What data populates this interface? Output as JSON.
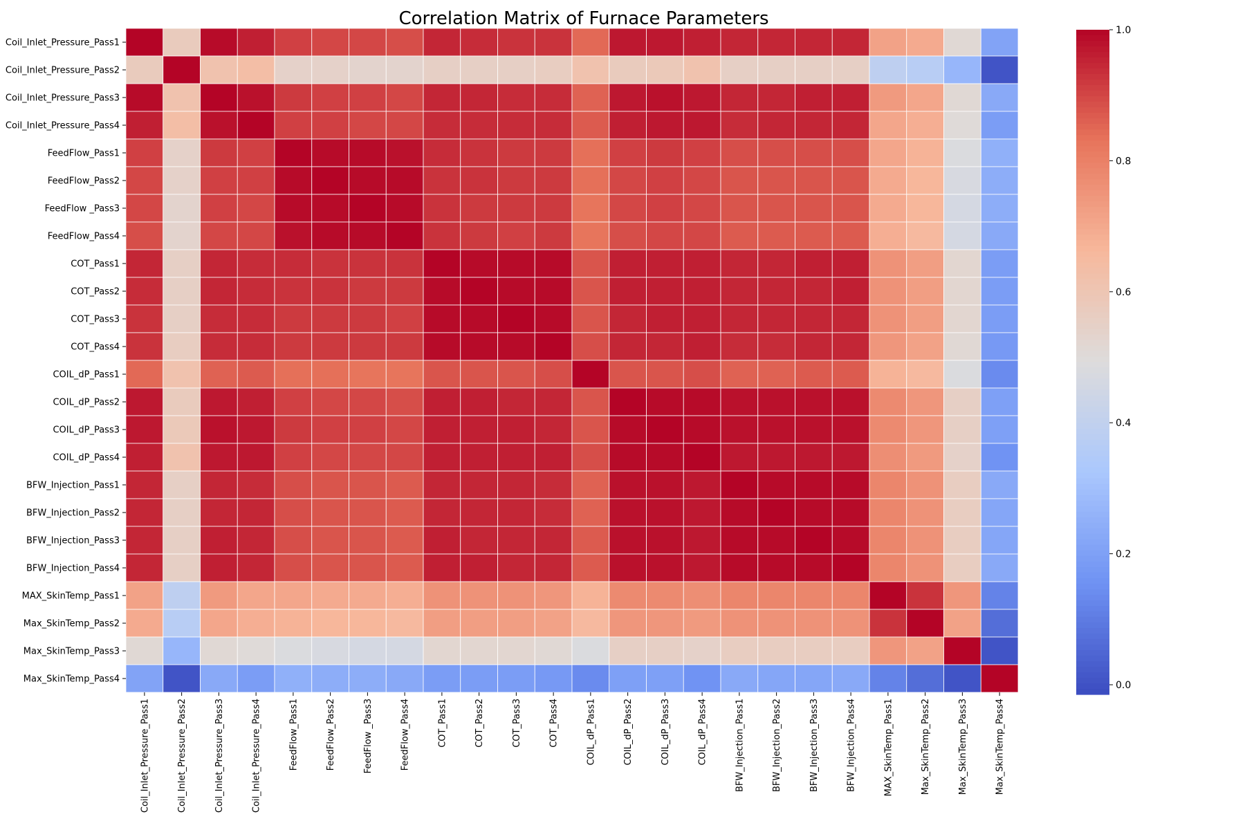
{
  "chart_data": {
    "type": "heatmap",
    "title": "Correlation Matrix of Furnace Parameters",
    "colormap": "coolwarm",
    "colormap_stops": [
      "#3b4cc0",
      "#6f92f3",
      "#aac7fd",
      "#dddcdc",
      "#f7b89c",
      "#e7745b",
      "#b40426"
    ],
    "value_range": [
      0.0,
      1.0
    ],
    "colorbar_ticks": [
      "0.0",
      "0.2",
      "0.4",
      "0.6",
      "0.8",
      "1.0"
    ],
    "gridlines": "white",
    "labels": [
      "Coil_Inlet_Pressure_Pass1",
      "Coil_Inlet_Pressure_Pass2",
      "Coil_Inlet_Pressure_Pass3",
      "Coil_Inlet_Pressure_Pass4",
      "FeedFlow_Pass1",
      "FeedFlow_Pass2",
      "FeedFlow _Pass3",
      "FeedFlow_Pass4",
      "COT_Pass1",
      "COT_Pass2",
      "COT_Pass3",
      "COT_Pass4",
      "COIL_dP_Pass1",
      "COIL_dP_Pass2",
      "COIL_dP_Pass3",
      "COIL_dP_Pass4",
      "BFW_Injection_Pass1",
      "BFW_Injection_Pass2",
      "BFW_Injection_Pass3",
      "BFW_Injection_Pass4",
      "MAX_SkinTemp_Pass1",
      "Max_SkinTemp_Pass2",
      "Max_SkinTemp_Pass3",
      "Max_SkinTemp_Pass4"
    ],
    "matrix": [
      [
        1.0,
        0.58,
        0.99,
        0.96,
        0.91,
        0.9,
        0.9,
        0.89,
        0.95,
        0.94,
        0.93,
        0.93,
        0.85,
        0.97,
        0.97,
        0.96,
        0.95,
        0.95,
        0.95,
        0.95,
        0.72,
        0.7,
        0.52,
        0.22
      ],
      [
        0.58,
        1.0,
        0.62,
        0.64,
        0.55,
        0.55,
        0.54,
        0.54,
        0.56,
        0.56,
        0.56,
        0.57,
        0.62,
        0.58,
        0.59,
        0.62,
        0.56,
        0.56,
        0.56,
        0.56,
        0.4,
        0.38,
        0.28,
        0.02
      ],
      [
        0.99,
        0.62,
        1.0,
        0.98,
        0.92,
        0.91,
        0.91,
        0.9,
        0.95,
        0.95,
        0.94,
        0.94,
        0.86,
        0.97,
        0.98,
        0.97,
        0.95,
        0.95,
        0.96,
        0.96,
        0.74,
        0.71,
        0.52,
        0.24
      ],
      [
        0.96,
        0.64,
        0.98,
        1.0,
        0.91,
        0.91,
        0.9,
        0.9,
        0.94,
        0.94,
        0.94,
        0.94,
        0.87,
        0.96,
        0.97,
        0.97,
        0.94,
        0.95,
        0.95,
        0.95,
        0.71,
        0.69,
        0.51,
        0.2
      ],
      [
        0.91,
        0.55,
        0.92,
        0.91,
        1.0,
        0.99,
        0.99,
        0.98,
        0.94,
        0.93,
        0.92,
        0.92,
        0.84,
        0.91,
        0.92,
        0.91,
        0.89,
        0.89,
        0.89,
        0.89,
        0.71,
        0.68,
        0.49,
        0.26
      ],
      [
        0.9,
        0.55,
        0.91,
        0.91,
        0.99,
        1.0,
        0.99,
        0.99,
        0.93,
        0.93,
        0.92,
        0.92,
        0.84,
        0.9,
        0.91,
        0.9,
        0.88,
        0.88,
        0.88,
        0.88,
        0.7,
        0.67,
        0.48,
        0.25
      ],
      [
        0.9,
        0.54,
        0.91,
        0.9,
        0.99,
        0.99,
        1.0,
        0.99,
        0.93,
        0.92,
        0.92,
        0.92,
        0.83,
        0.9,
        0.91,
        0.9,
        0.88,
        0.88,
        0.88,
        0.88,
        0.7,
        0.67,
        0.47,
        0.25
      ],
      [
        0.89,
        0.54,
        0.9,
        0.9,
        0.98,
        0.99,
        0.99,
        1.0,
        0.93,
        0.92,
        0.91,
        0.92,
        0.83,
        0.89,
        0.9,
        0.9,
        0.87,
        0.87,
        0.87,
        0.87,
        0.69,
        0.66,
        0.47,
        0.24
      ],
      [
        0.95,
        0.56,
        0.95,
        0.94,
        0.94,
        0.93,
        0.93,
        0.93,
        1.0,
        0.99,
        0.99,
        0.99,
        0.88,
        0.96,
        0.96,
        0.96,
        0.95,
        0.95,
        0.96,
        0.96,
        0.76,
        0.73,
        0.53,
        0.2
      ],
      [
        0.94,
        0.56,
        0.95,
        0.94,
        0.93,
        0.93,
        0.92,
        0.92,
        0.99,
        1.0,
        0.99,
        0.99,
        0.88,
        0.96,
        0.96,
        0.96,
        0.95,
        0.95,
        0.95,
        0.96,
        0.76,
        0.73,
        0.53,
        0.2
      ],
      [
        0.93,
        0.56,
        0.94,
        0.94,
        0.92,
        0.92,
        0.92,
        0.91,
        0.99,
        0.99,
        1.0,
        0.99,
        0.88,
        0.95,
        0.96,
        0.96,
        0.95,
        0.95,
        0.95,
        0.95,
        0.76,
        0.73,
        0.53,
        0.2
      ],
      [
        0.93,
        0.57,
        0.94,
        0.94,
        0.92,
        0.92,
        0.92,
        0.92,
        0.99,
        0.99,
        0.99,
        1.0,
        0.89,
        0.95,
        0.95,
        0.96,
        0.94,
        0.94,
        0.95,
        0.95,
        0.75,
        0.72,
        0.52,
        0.19
      ],
      [
        0.85,
        0.62,
        0.86,
        0.87,
        0.84,
        0.84,
        0.83,
        0.83,
        0.88,
        0.88,
        0.88,
        0.89,
        1.0,
        0.88,
        0.88,
        0.89,
        0.86,
        0.86,
        0.87,
        0.87,
        0.68,
        0.66,
        0.49,
        0.15
      ],
      [
        0.97,
        0.58,
        0.97,
        0.96,
        0.91,
        0.9,
        0.9,
        0.89,
        0.96,
        0.96,
        0.95,
        0.95,
        0.88,
        1.0,
        0.99,
        0.99,
        0.98,
        0.98,
        0.98,
        0.98,
        0.78,
        0.75,
        0.56,
        0.21
      ],
      [
        0.97,
        0.59,
        0.98,
        0.97,
        0.92,
        0.91,
        0.91,
        0.9,
        0.96,
        0.96,
        0.96,
        0.95,
        0.88,
        0.99,
        1.0,
        0.99,
        0.98,
        0.98,
        0.98,
        0.98,
        0.78,
        0.75,
        0.56,
        0.21
      ],
      [
        0.96,
        0.62,
        0.97,
        0.97,
        0.91,
        0.9,
        0.9,
        0.9,
        0.96,
        0.96,
        0.96,
        0.96,
        0.89,
        0.99,
        0.99,
        1.0,
        0.97,
        0.97,
        0.97,
        0.97,
        0.77,
        0.74,
        0.55,
        0.17
      ],
      [
        0.95,
        0.56,
        0.95,
        0.94,
        0.89,
        0.88,
        0.88,
        0.87,
        0.95,
        0.95,
        0.95,
        0.94,
        0.86,
        0.98,
        0.98,
        0.97,
        1.0,
        0.99,
        0.99,
        0.99,
        0.79,
        0.76,
        0.57,
        0.24
      ],
      [
        0.95,
        0.56,
        0.95,
        0.95,
        0.89,
        0.88,
        0.88,
        0.87,
        0.95,
        0.95,
        0.95,
        0.94,
        0.86,
        0.98,
        0.98,
        0.97,
        0.99,
        1.0,
        0.99,
        0.99,
        0.79,
        0.76,
        0.57,
        0.23
      ],
      [
        0.95,
        0.56,
        0.96,
        0.95,
        0.89,
        0.88,
        0.88,
        0.87,
        0.96,
        0.95,
        0.95,
        0.95,
        0.87,
        0.98,
        0.98,
        0.97,
        0.99,
        0.99,
        1.0,
        0.99,
        0.79,
        0.76,
        0.57,
        0.23
      ],
      [
        0.95,
        0.56,
        0.96,
        0.95,
        0.89,
        0.88,
        0.88,
        0.87,
        0.96,
        0.96,
        0.95,
        0.95,
        0.87,
        0.98,
        0.98,
        0.97,
        0.99,
        0.99,
        0.99,
        1.0,
        0.79,
        0.76,
        0.57,
        0.24
      ],
      [
        0.72,
        0.4,
        0.74,
        0.71,
        0.71,
        0.7,
        0.7,
        0.69,
        0.76,
        0.76,
        0.76,
        0.75,
        0.68,
        0.78,
        0.78,
        0.77,
        0.79,
        0.79,
        0.79,
        0.79,
        1.0,
        0.93,
        0.75,
        0.13
      ],
      [
        0.7,
        0.38,
        0.71,
        0.69,
        0.68,
        0.67,
        0.67,
        0.66,
        0.73,
        0.73,
        0.73,
        0.72,
        0.66,
        0.75,
        0.75,
        0.74,
        0.76,
        0.76,
        0.76,
        0.76,
        0.93,
        1.0,
        0.72,
        0.08
      ],
      [
        0.52,
        0.28,
        0.52,
        0.51,
        0.49,
        0.48,
        0.47,
        0.47,
        0.53,
        0.53,
        0.53,
        0.52,
        0.49,
        0.56,
        0.56,
        0.55,
        0.57,
        0.57,
        0.57,
        0.57,
        0.75,
        0.72,
        1.0,
        0.02
      ],
      [
        0.22,
        0.02,
        0.24,
        0.2,
        0.26,
        0.25,
        0.25,
        0.24,
        0.2,
        0.2,
        0.2,
        0.19,
        0.15,
        0.21,
        0.21,
        0.17,
        0.24,
        0.23,
        0.23,
        0.24,
        0.13,
        0.08,
        0.02,
        1.0
      ]
    ]
  }
}
